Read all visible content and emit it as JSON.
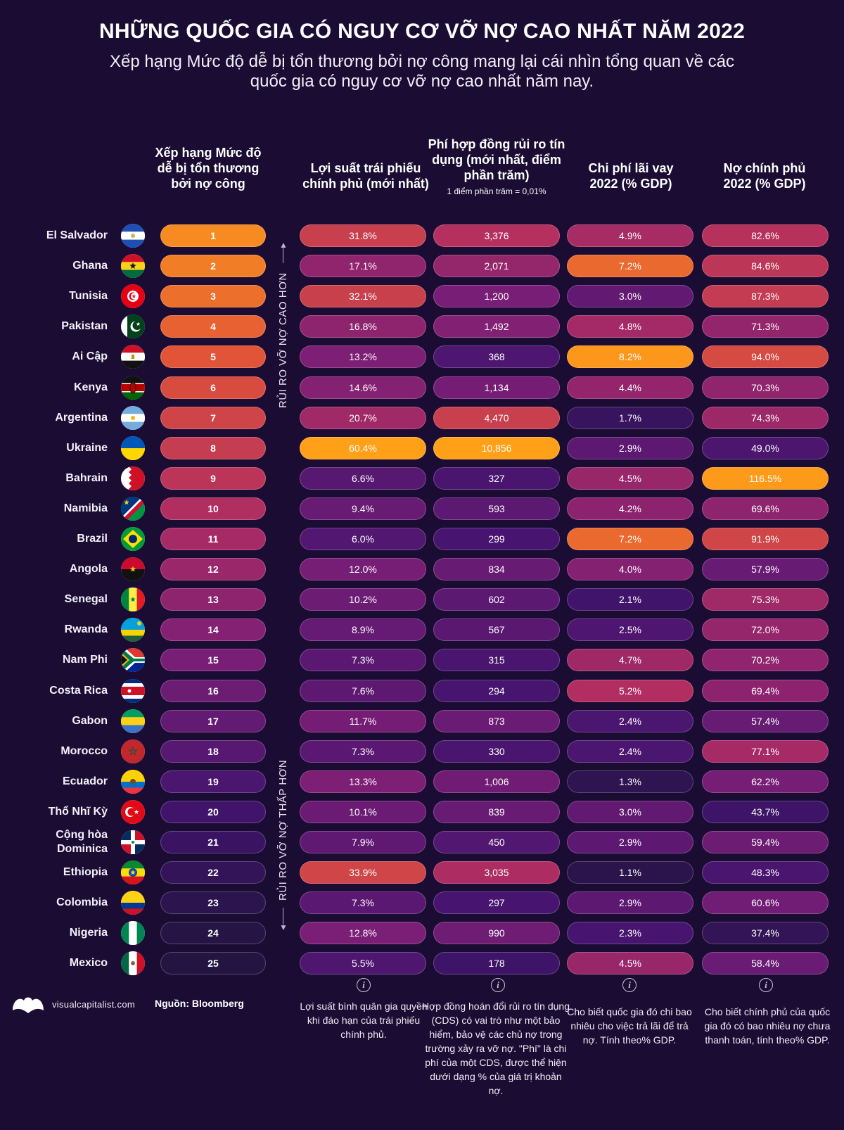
{
  "title": "NHỮNG QUỐC GIA CÓ NGUY CƠ VỠ NỢ CAO NHẤT NĂM 2022",
  "subtitle": "Xếp hạng Mức độ dễ bị tổn thương bởi nợ công mang lại cái nhìn tổng quan về các quốc gia có nguy cơ vỡ nợ cao nhất năm nay.",
  "columns": {
    "rank": "Xếp hạng Mức độ dễ bị tổn thương bởi nợ công",
    "yield": "Lợi suất trái phiếu chính phủ (mới nhất)",
    "cds": "Phí hợp đồng rủi ro tín dụng (mới nhất, điểm phần trăm)",
    "cds_note": "1 điểm phần trăm = 0,01%",
    "interest": "Chi phí lãi vay 2022 (% GDP)",
    "debt": "Nợ chính phủ 2022 (% GDP)"
  },
  "side_labels": {
    "higher": "RỦI RO VỠ NỢ CAO HƠN",
    "lower": "RỦI RO VỠ NỢ THẤP HƠN"
  },
  "info_icon_glyph": "i",
  "info_notes": {
    "yield": "Lợi suất bình quân gia quyền khi đáo hạn của trái phiếu chính phủ.",
    "cds": "Hợp đồng hoán đổi rủi ro tín dụng (CDS) có vai trò như một bảo hiểm, bảo vệ các chủ nợ trong trường xảy ra vỡ nợ. \"Phí\" là chi phí của một CDS, được thể hiện dưới dạng % của giá trị khoản nợ.",
    "interest": "Cho biết quốc gia đó chi bao nhiêu cho việc trả lãi để trả nợ. Tính theo% GDP.",
    "debt": "Cho biết chính phủ của quốc gia đó có bao nhiêu nợ chưa thanh toán, tính theo% GDP."
  },
  "footer": {
    "brand": "visualcapitalist.com",
    "source": "Nguồn: Bloomberg"
  },
  "colors": {
    "background": "#1a0c33",
    "high": "#ff9f1c",
    "low": "#221142"
  },
  "chart_data": {
    "type": "table",
    "title": "NHỮNG QUỐC GIA CÓ NGUY CƠ VỠ NỢ CAO NHẤT NĂM 2022",
    "headers": [
      "Xếp hạng Mức độ dễ bị tổn thương bởi nợ công",
      "Lợi suất trái phiếu chính phủ (mới nhất)",
      "Phí hợp đồng rủi ro tín dụng (mới nhất, điểm phần trăm)",
      "Chi phí lãi vay 2022 (% GDP)",
      "Nợ chính phủ 2022 (% GDP)"
    ],
    "rows": [
      {
        "country": "El Salvador",
        "flag": "el-salvador",
        "rank": "1",
        "yield": "31.8%",
        "cds": "3,376",
        "interest": "4.9%",
        "debt": "82.6%"
      },
      {
        "country": "Ghana",
        "flag": "ghana",
        "rank": "2",
        "yield": "17.1%",
        "cds": "2,071",
        "interest": "7.2%",
        "debt": "84.6%"
      },
      {
        "country": "Tunisia",
        "flag": "tunisia",
        "rank": "3",
        "yield": "32.1%",
        "cds": "1,200",
        "interest": "3.0%",
        "debt": "87.3%"
      },
      {
        "country": "Pakistan",
        "flag": "pakistan",
        "rank": "4",
        "yield": "16.8%",
        "cds": "1,492",
        "interest": "4.8%",
        "debt": "71.3%"
      },
      {
        "country": "Ai Cập",
        "flag": "egypt",
        "rank": "5",
        "yield": "13.2%",
        "cds": "368",
        "interest": "8.2%",
        "debt": "94.0%"
      },
      {
        "country": "Kenya",
        "flag": "kenya",
        "rank": "6",
        "yield": "14.6%",
        "cds": "1,134",
        "interest": "4.4%",
        "debt": "70.3%"
      },
      {
        "country": "Argentina",
        "flag": "argentina",
        "rank": "7",
        "yield": "20.7%",
        "cds": "4,470",
        "interest": "1.7%",
        "debt": "74.3%"
      },
      {
        "country": "Ukraine",
        "flag": "ukraine",
        "rank": "8",
        "yield": "60.4%",
        "cds": "10,856",
        "interest": "2.9%",
        "debt": "49.0%"
      },
      {
        "country": "Bahrain",
        "flag": "bahrain",
        "rank": "9",
        "yield": "6.6%",
        "cds": "327",
        "interest": "4.5%",
        "debt": "116.5%"
      },
      {
        "country": "Namibia",
        "flag": "namibia",
        "rank": "10",
        "yield": "9.4%",
        "cds": "593",
        "interest": "4.2%",
        "debt": "69.6%"
      },
      {
        "country": "Brazil",
        "flag": "brazil",
        "rank": "11",
        "yield": "6.0%",
        "cds": "299",
        "interest": "7.2%",
        "debt": "91.9%"
      },
      {
        "country": "Angola",
        "flag": "angola",
        "rank": "12",
        "yield": "12.0%",
        "cds": "834",
        "interest": "4.0%",
        "debt": "57.9%"
      },
      {
        "country": "Senegal",
        "flag": "senegal",
        "rank": "13",
        "yield": "10.2%",
        "cds": "602",
        "interest": "2.1%",
        "debt": "75.3%"
      },
      {
        "country": "Rwanda",
        "flag": "rwanda",
        "rank": "14",
        "yield": "8.9%",
        "cds": "567",
        "interest": "2.5%",
        "debt": "72.0%"
      },
      {
        "country": "Nam Phi",
        "flag": "south-africa",
        "rank": "15",
        "yield": "7.3%",
        "cds": "315",
        "interest": "4.7%",
        "debt": "70.2%"
      },
      {
        "country": "Costa Rica",
        "flag": "costa-rica",
        "rank": "16",
        "yield": "7.6%",
        "cds": "294",
        "interest": "5.2%",
        "debt": "69.4%"
      },
      {
        "country": "Gabon",
        "flag": "gabon",
        "rank": "17",
        "yield": "11.7%",
        "cds": "873",
        "interest": "2.4%",
        "debt": "57.4%"
      },
      {
        "country": "Morocco",
        "flag": "morocco",
        "rank": "18",
        "yield": "7.3%",
        "cds": "330",
        "interest": "2.4%",
        "debt": "77.1%"
      },
      {
        "country": "Ecuador",
        "flag": "ecuador",
        "rank": "19",
        "yield": "13.3%",
        "cds": "1,006",
        "interest": "1.3%",
        "debt": "62.2%"
      },
      {
        "country": "Thổ Nhĩ Kỳ",
        "flag": "turkey",
        "rank": "20",
        "yield": "10.1%",
        "cds": "839",
        "interest": "3.0%",
        "debt": "43.7%"
      },
      {
        "country": "Cộng hòa Dominica",
        "flag": "dominican-republic",
        "rank": "21",
        "yield": "7.9%",
        "cds": "450",
        "interest": "2.9%",
        "debt": "59.4%"
      },
      {
        "country": "Ethiopia",
        "flag": "ethiopia",
        "rank": "22",
        "yield": "33.9%",
        "cds": "3,035",
        "interest": "1.1%",
        "debt": "48.3%"
      },
      {
        "country": "Colombia",
        "flag": "colombia",
        "rank": "23",
        "yield": "7.3%",
        "cds": "297",
        "interest": "2.9%",
        "debt": "60.6%"
      },
      {
        "country": "Nigeria",
        "flag": "nigeria",
        "rank": "24",
        "yield": "12.8%",
        "cds": "990",
        "interest": "2.3%",
        "debt": "37.4%"
      },
      {
        "country": "Mexico",
        "flag": "mexico",
        "rank": "25",
        "yield": "5.5%",
        "cds": "178",
        "interest": "4.5%",
        "debt": "58.4%"
      }
    ]
  }
}
